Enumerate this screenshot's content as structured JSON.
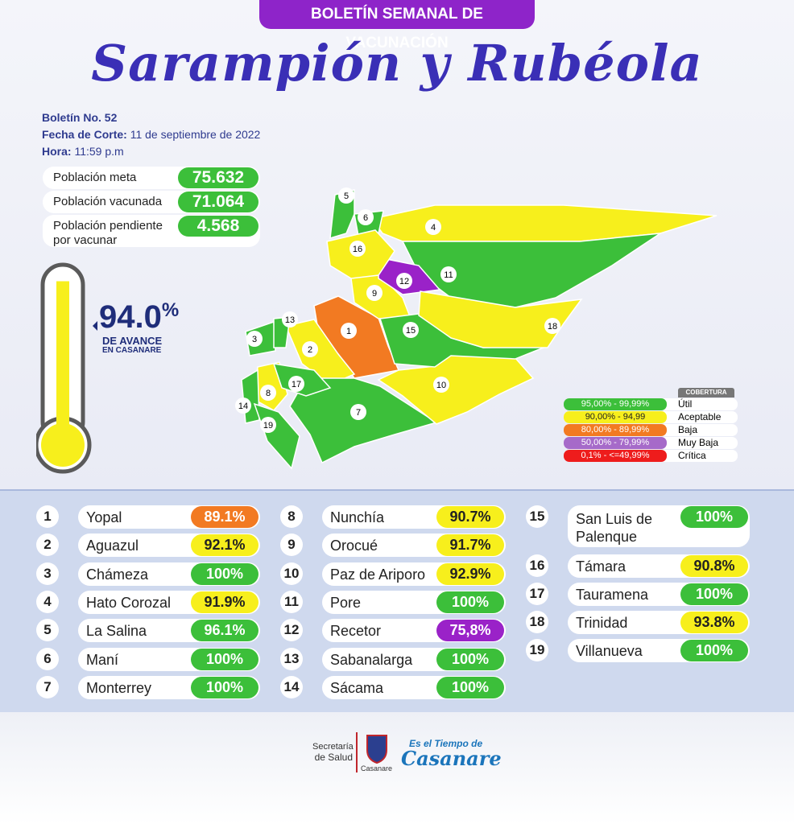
{
  "header": {
    "banner": "BOLETÍN SEMANAL DE VACUNACIÓN",
    "title": "Sarampión y Rubéola"
  },
  "info": {
    "boletin_label": "Boletín No.",
    "boletin_value": "52",
    "fecha_label": "Fecha de Corte:",
    "fecha_value": "11 de septiembre de 2022",
    "hora_label": "Hora:",
    "hora_value": "11:59 p.m"
  },
  "population": [
    {
      "label": "Población meta",
      "value": "75.632"
    },
    {
      "label": "Población vacunada",
      "value": "71.064"
    },
    {
      "label": "Población pendiente por vacunar",
      "value": "4.568"
    }
  ],
  "progress": {
    "value": "94.0",
    "unit": "%",
    "caption": "DE AVANCE",
    "subcaption": "EN CASANARE"
  },
  "legend": {
    "title": "COBERTURA",
    "items": [
      {
        "range": "95,00% - 99,99%",
        "label": "Útil",
        "color": "#3cbf3a"
      },
      {
        "range": "90,00% - 94,99",
        "label": "Aceptable",
        "color": "#f7ef1c"
      },
      {
        "range": "80,00% - 89,99%",
        "label": "Baja",
        "color": "#f27a22"
      },
      {
        "range": "50,00% - 79,99%",
        "label": "Muy Baja",
        "color": "#a66ac9"
      },
      {
        "range": "0,1% - <=49,99%",
        "label": "Crítica",
        "color": "#ee1c1c"
      }
    ]
  },
  "municipalities": [
    {
      "number": 1,
      "name": "Yopal",
      "coverage": "89.1%",
      "color": "#f27a22"
    },
    {
      "number": 2,
      "name": "Aguazul",
      "coverage": "92.1%",
      "color": "#f7ef1c"
    },
    {
      "number": 3,
      "name": "Chámeza",
      "coverage": "100%",
      "color": "#3cbf3a"
    },
    {
      "number": 4,
      "name": "Hato Corozal",
      "coverage": "91.9%",
      "color": "#f7ef1c"
    },
    {
      "number": 5,
      "name": "La Salina",
      "coverage": "96.1%",
      "color": "#3cbf3a"
    },
    {
      "number": 6,
      "name": "Maní",
      "coverage": "100%",
      "color": "#3cbf3a"
    },
    {
      "number": 7,
      "name": "Monterrey",
      "coverage": "100%",
      "color": "#3cbf3a"
    },
    {
      "number": 8,
      "name": "Nunchía",
      "coverage": "90.7%",
      "color": "#f7ef1c"
    },
    {
      "number": 9,
      "name": "Orocué",
      "coverage": "91.7%",
      "color": "#f7ef1c"
    },
    {
      "number": 10,
      "name": "Paz de Ariporo",
      "coverage": "92.9%",
      "color": "#f7ef1c"
    },
    {
      "number": 11,
      "name": "Pore",
      "coverage": "100%",
      "color": "#3cbf3a"
    },
    {
      "number": 12,
      "name": "Recetor",
      "coverage": "75,8%",
      "color": "#9a22c8"
    },
    {
      "number": 13,
      "name": "Sabanalarga",
      "coverage": "100%",
      "color": "#3cbf3a"
    },
    {
      "number": 14,
      "name": "Sácama",
      "coverage": "100%",
      "color": "#3cbf3a"
    },
    {
      "number": 15,
      "name": "San Luis de Palenque",
      "coverage": "100%",
      "color": "#3cbf3a"
    },
    {
      "number": 16,
      "name": "Támara",
      "coverage": "90.8%",
      "color": "#f7ef1c"
    },
    {
      "number": 17,
      "name": "Tauramena",
      "coverage": "100%",
      "color": "#3cbf3a"
    },
    {
      "number": 18,
      "name": "Trinidad",
      "coverage": "93.8%",
      "color": "#f7ef1c"
    },
    {
      "number": 19,
      "name": "Villanueva",
      "coverage": "100%",
      "color": "#3cbf3a"
    }
  ],
  "footer": {
    "secretaria_1": "Secretaría",
    "secretaria_2": "de Salud",
    "crest": "Casanare",
    "slogan": "Es el Tiempo de",
    "brand": "Casanare"
  }
}
